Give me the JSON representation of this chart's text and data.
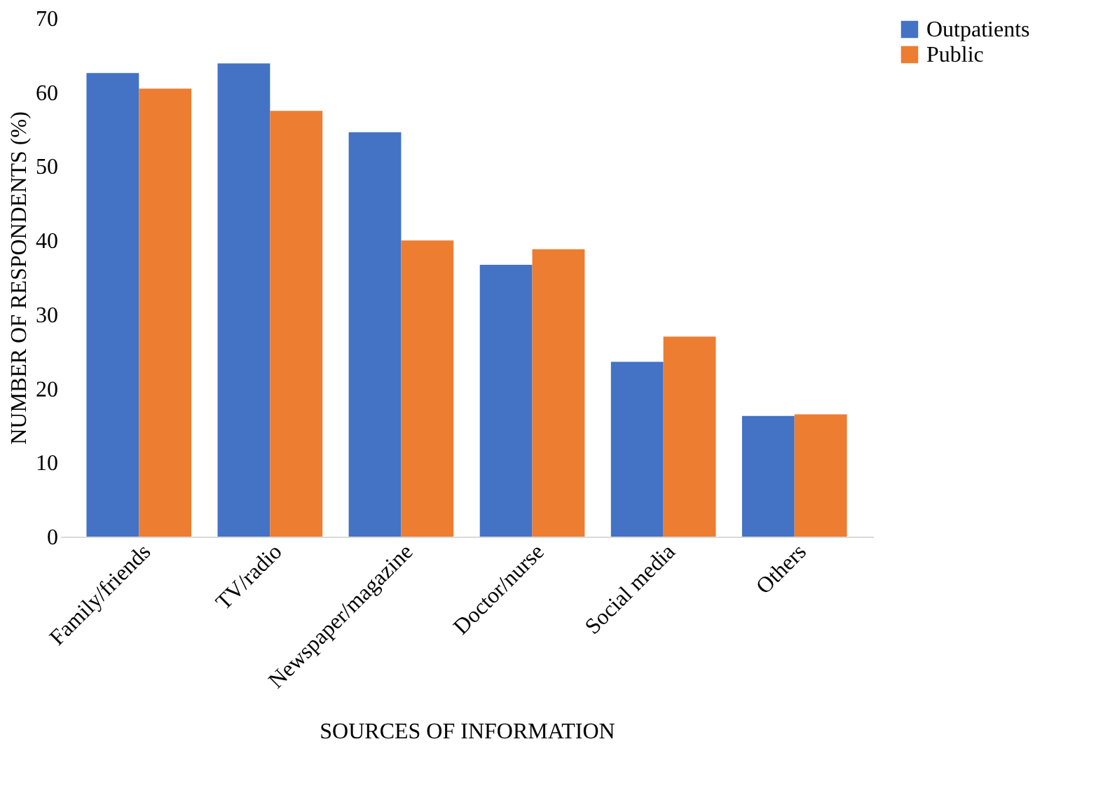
{
  "chart_data": {
    "type": "bar",
    "xlabel": "SOURCES OF INFORMATION",
    "ylabel": "NUMBER OF RESPONDENTS (%)",
    "categories": [
      "Family/friends",
      "TV/radio",
      "Newspaper/magazine",
      "Doctor/nurse",
      "Social media",
      "Others"
    ],
    "series": [
      {
        "name": "Outpatients",
        "color": "#4472c4",
        "values": [
          62.6,
          63.9,
          54.6,
          36.7,
          23.6,
          16.3
        ]
      },
      {
        "name": "Public",
        "color": "#ed7d31",
        "values": [
          60.5,
          57.5,
          40.0,
          38.8,
          27.0,
          16.5
        ]
      }
    ],
    "ylim": [
      0,
      70
    ],
    "yticks": [
      0,
      10,
      20,
      30,
      40,
      50,
      60,
      70
    ],
    "grid": false,
    "legend": "right"
  }
}
